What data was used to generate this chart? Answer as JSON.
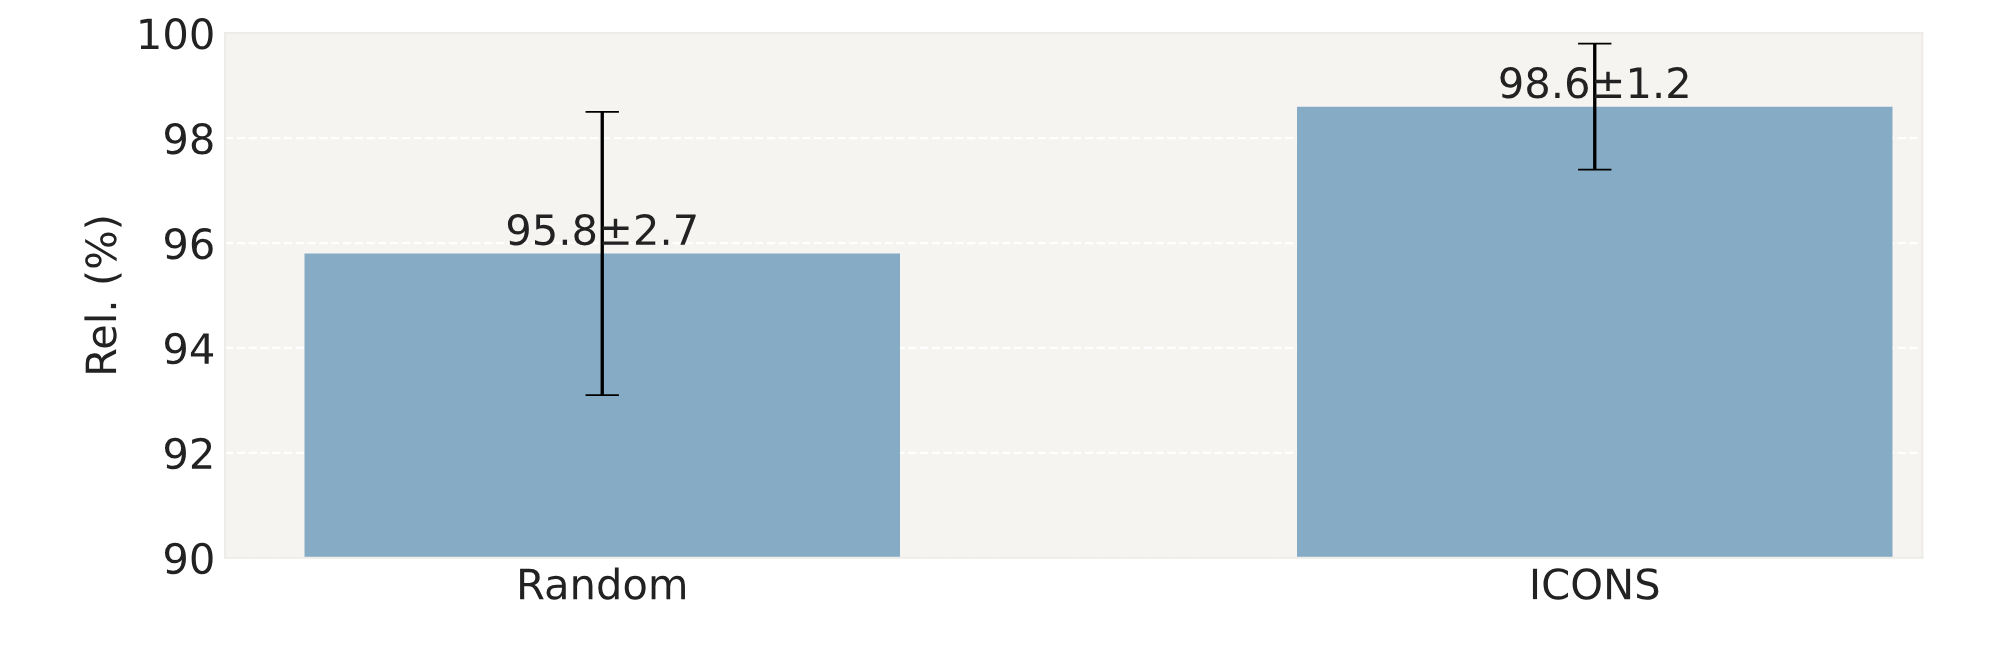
{
  "chart_data": {
    "type": "bar",
    "ylabel": "Rel. (%)",
    "categories": [
      "Random",
      "ICONS"
    ],
    "values": [
      95.8,
      98.6
    ],
    "errors": [
      2.7,
      1.2
    ],
    "value_labels": [
      "95.8±2.7",
      "98.6±1.2"
    ],
    "color": "#85abc5",
    "ylim": [
      90,
      100
    ],
    "yticks": [
      90,
      92,
      94,
      96,
      98,
      100
    ],
    "grid": "y"
  }
}
